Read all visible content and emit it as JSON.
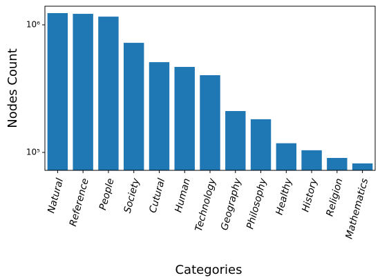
{
  "chart_data": {
    "type": "bar",
    "categories": [
      "Natural",
      "Reference",
      "People",
      "Society",
      "Cutural",
      "Human",
      "Technology",
      "Geography",
      "Philosophy",
      "Healthy",
      "History",
      "Religion",
      "Mathematics"
    ],
    "values": [
      1236000,
      1220000,
      1160000,
      723000,
      510000,
      468000,
      403000,
      211000,
      182000,
      118000,
      104000,
      90500,
      82000
    ],
    "color": "#1f77b4",
    "log_scale": true,
    "ylim": [
      72350,
      1400000
    ],
    "yticks": [
      {
        "value": 100000,
        "label": "10⁵"
      },
      {
        "value": 1000000,
        "label": "10⁶"
      }
    ],
    "xlabel": "Categories",
    "ylabel": "Nodes Count"
  }
}
